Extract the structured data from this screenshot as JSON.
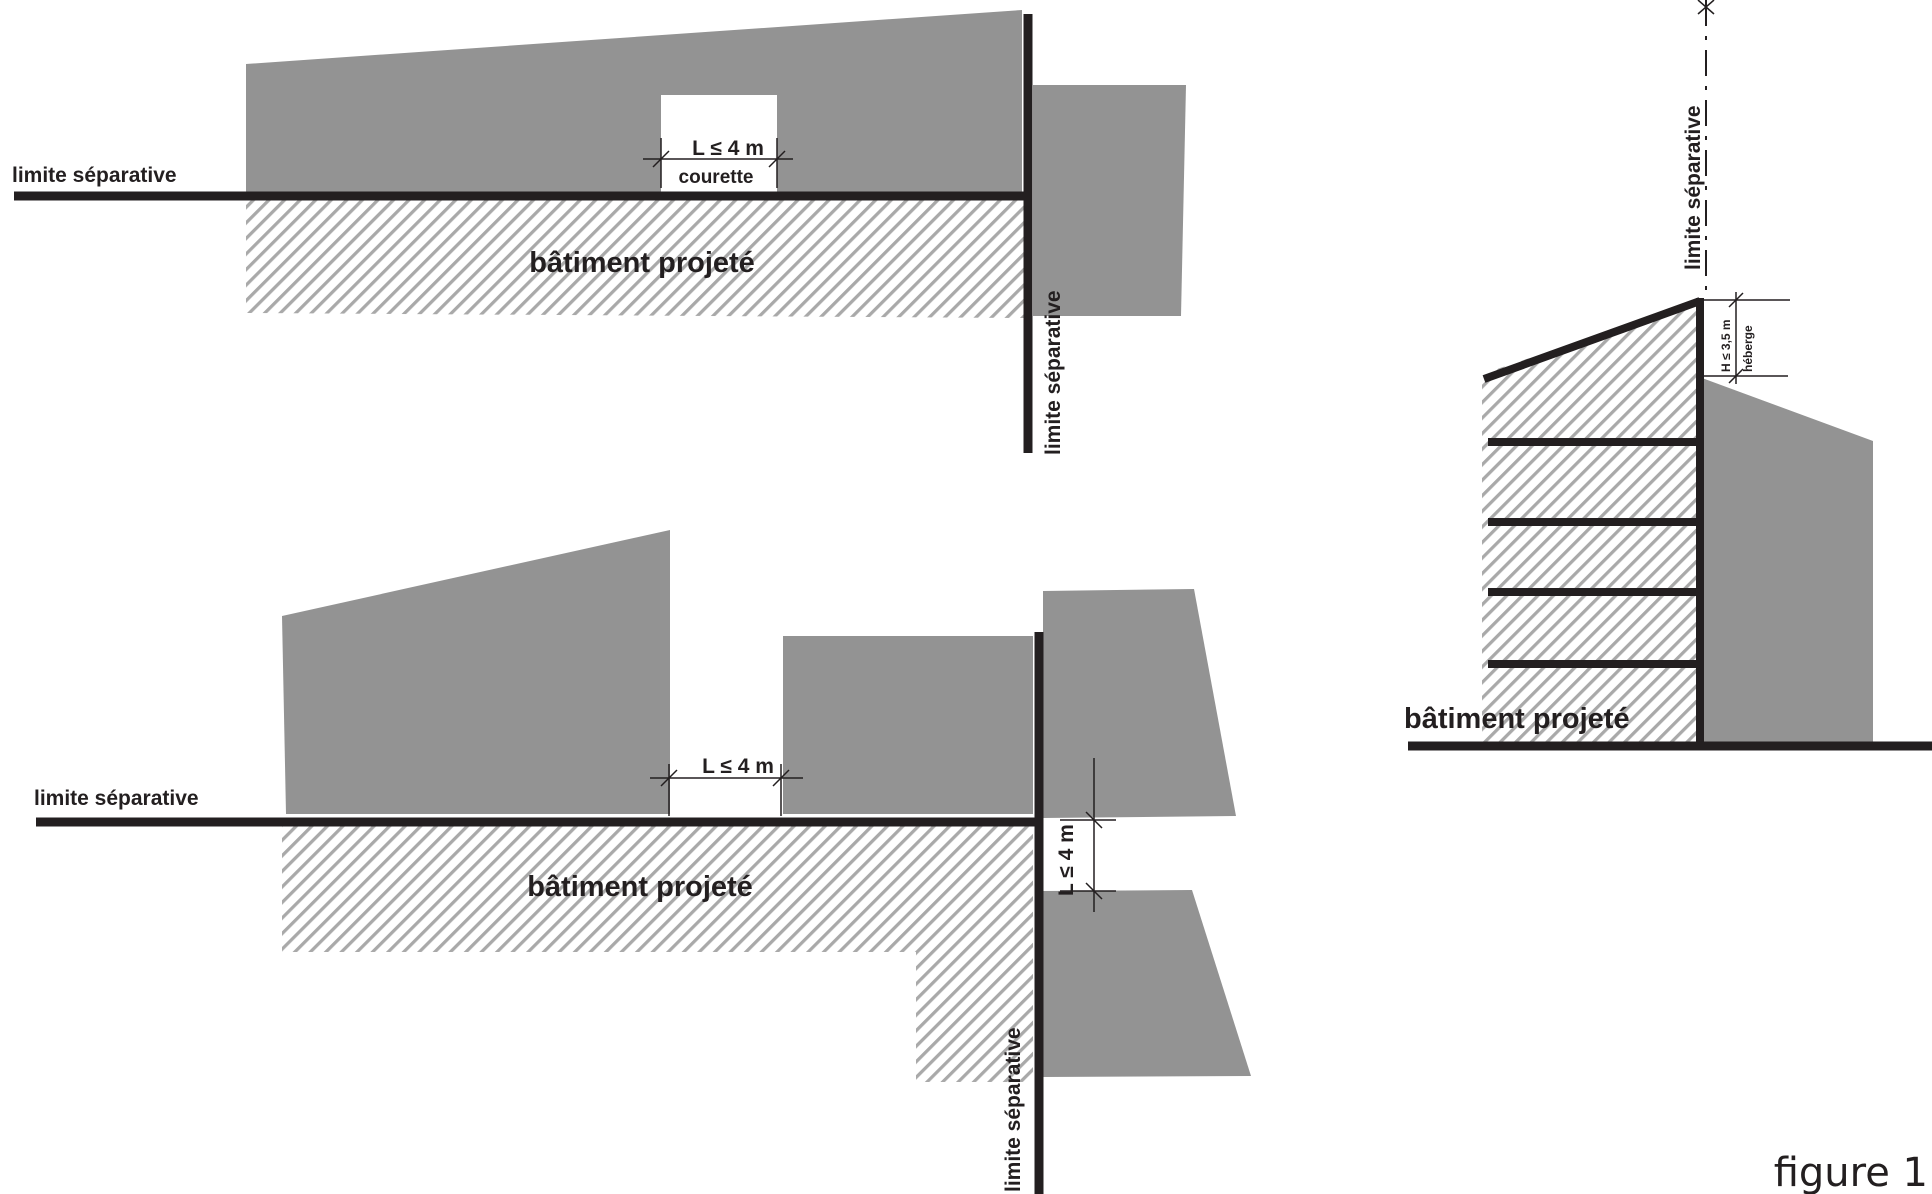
{
  "colors": {
    "existing_building": "#939393",
    "hatch_stroke": "#a9a9a9",
    "line": "#231f20"
  },
  "figure_label": "figure 1",
  "top_plan": {
    "limit_horizontal": "limite séparative",
    "limit_vertical": "limite séparative",
    "dimension": "L ≤ 4 m",
    "courtyard": "courette",
    "building": "bâtiment projeté"
  },
  "bottom_plan": {
    "limit_horizontal": "limite séparative",
    "limit_vertical": "limite séparative",
    "dimension_horizontal": "L ≤ 4 m",
    "dimension_vertical": "L ≤ 4 m",
    "building": "bâtiment projeté"
  },
  "section": {
    "limit_vertical": "limite séparative",
    "height": "H ≤ 3,5 m",
    "heberge": "héberge",
    "building": "bâtiment projeté"
  }
}
